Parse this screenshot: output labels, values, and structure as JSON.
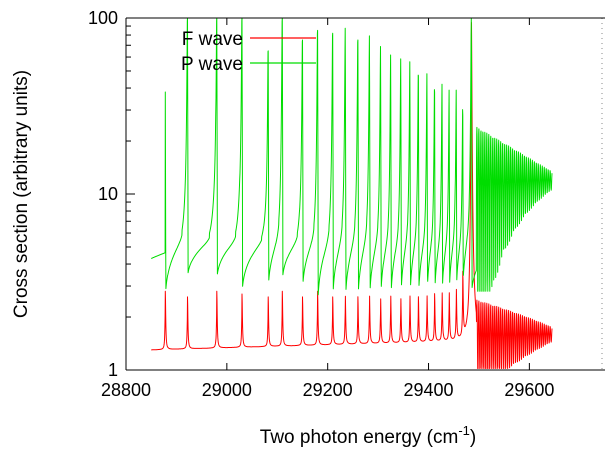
{
  "chart_data": {
    "type": "line",
    "xlabel": "Two photon energy (cm",
    "xlabel_sup": "-1",
    "xlabel_suffix": ")",
    "ylabel": "Cross section (arbitrary units)",
    "x_scale": "linear",
    "y_scale": "log",
    "xlim": [
      28800,
      29750
    ],
    "ylim": [
      1,
      100
    ],
    "x_ticks": [
      28800,
      29000,
      29200,
      29400,
      29600
    ],
    "x_tick_labels": [
      "28800",
      "29000",
      "29200",
      "29400",
      "29600"
    ],
    "y_ticks": [
      1,
      10,
      100
    ],
    "y_tick_labels": [
      "1",
      "10",
      "100"
    ],
    "legend_position": "top-left",
    "series": [
      {
        "name": "F wave",
        "color": "#ff0000",
        "x_start": 28850,
        "x_end": 29645,
        "baseline_start": 1.3,
        "baseline_end": 1.5,
        "resonances": [
          {
            "x": 28878,
            "peak": 2.8
          },
          {
            "x": 28922,
            "peak": 2.6
          },
          {
            "x": 28980,
            "peak": 2.8
          },
          {
            "x": 29030,
            "peak": 2.7
          },
          {
            "x": 29082,
            "peak": 2.6
          },
          {
            "x": 29110,
            "peak": 2.8
          },
          {
            "x": 29150,
            "peak": 2.6
          },
          {
            "x": 29180,
            "peak": 2.8
          },
          {
            "x": 29210,
            "peak": 2.6
          },
          {
            "x": 29235,
            "peak": 2.7
          },
          {
            "x": 29260,
            "peak": 2.6
          },
          {
            "x": 29283,
            "peak": 2.7
          },
          {
            "x": 29305,
            "peak": 2.6
          },
          {
            "x": 29325,
            "peak": 2.7
          },
          {
            "x": 29345,
            "peak": 2.6
          },
          {
            "x": 29363,
            "peak": 2.7
          },
          {
            "x": 29380,
            "peak": 2.6
          },
          {
            "x": 29397,
            "peak": 2.7
          },
          {
            "x": 29412,
            "peak": 2.7
          },
          {
            "x": 29427,
            "peak": 2.8
          },
          {
            "x": 29441,
            "peak": 2.8
          },
          {
            "x": 29455,
            "peak": 2.9
          },
          {
            "x": 29468,
            "peak": 3.5
          },
          {
            "x": 29485,
            "peak": 100
          }
        ],
        "oscillation": {
          "x_from": 29495,
          "x_to": 29645,
          "center": 1.6,
          "amplitude_max": 0.9,
          "amplitude_min": 0.15
        }
      },
      {
        "name": "P wave",
        "color": "#00dd00",
        "x_start": 28850,
        "x_end": 29645,
        "baseline_start": 4.3,
        "baseline_end": 4.0,
        "resonances": [
          {
            "x": 28878,
            "peak": 38,
            "dip": 2.3
          },
          {
            "x": 28922,
            "peak": 100,
            "dip": 3.2
          },
          {
            "x": 28980,
            "peak": 100,
            "dip": 3.1
          },
          {
            "x": 29030,
            "peak": 100,
            "dip": 2.5
          },
          {
            "x": 29082,
            "peak": 65,
            "dip": 2.5
          },
          {
            "x": 29110,
            "peak": 100,
            "dip": 3.0
          },
          {
            "x": 29150,
            "peak": 75,
            "dip": 2.5
          },
          {
            "x": 29180,
            "peak": 85,
            "dip": 1.85
          },
          {
            "x": 29210,
            "peak": 82,
            "dip": 2.0
          },
          {
            "x": 29235,
            "peak": 80,
            "dip": 1.9
          },
          {
            "x": 29260,
            "peak": 75,
            "dip": 1.95
          },
          {
            "x": 29283,
            "peak": 72,
            "dip": 1.9
          },
          {
            "x": 29305,
            "peak": 62,
            "dip": 1.9
          },
          {
            "x": 29325,
            "peak": 55,
            "dip": 1.85
          },
          {
            "x": 29345,
            "peak": 52,
            "dip": 1.9
          },
          {
            "x": 29363,
            "peak": 50,
            "dip": 1.85
          },
          {
            "x": 29380,
            "peak": 47,
            "dip": 1.95
          },
          {
            "x": 29397,
            "peak": 42,
            "dip": 1.95
          },
          {
            "x": 29412,
            "peak": 38,
            "dip": 2.0
          },
          {
            "x": 29427,
            "peak": 36,
            "dip": 2.05
          },
          {
            "x": 29441,
            "peak": 33,
            "dip": 2.1
          },
          {
            "x": 29455,
            "peak": 33,
            "dip": 2.2
          },
          {
            "x": 29468,
            "peak": 28,
            "dip": 2.3
          },
          {
            "x": 29485,
            "peak": 100,
            "dip": 2.5
          }
        ],
        "oscillation": {
          "x_from": 29495,
          "x_to": 29645,
          "center": 12,
          "amplitude_max": 12,
          "amplitude_min": 2
        }
      }
    ]
  }
}
